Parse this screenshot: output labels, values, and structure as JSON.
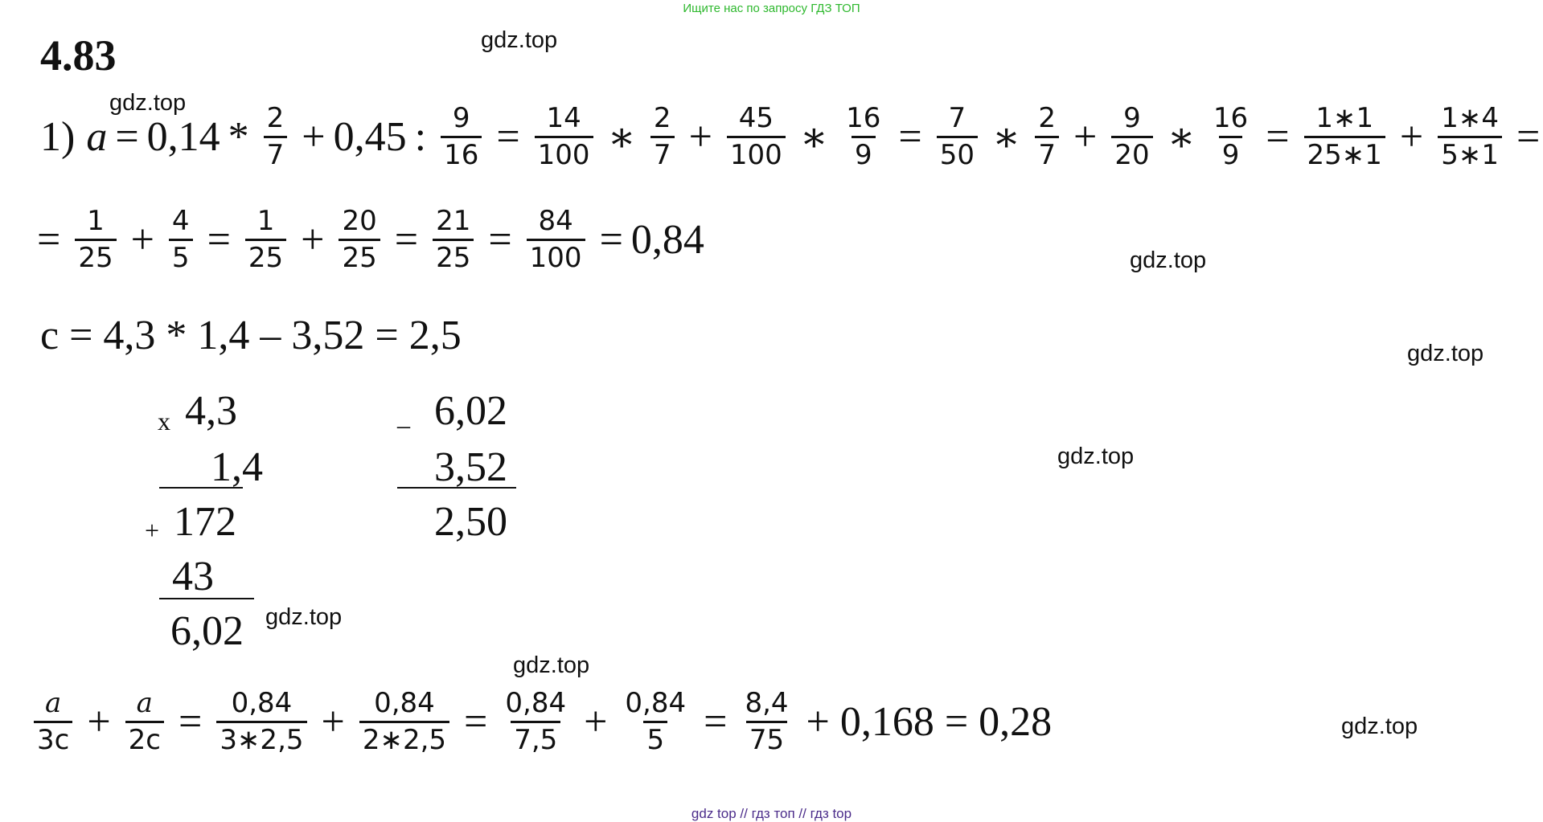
{
  "banner": "Ищите нас по запросу ГДЗ ТОП",
  "watermark": "gdz.top",
  "problem_number": "4.83",
  "line1": {
    "prefix": "1)",
    "var_a": "a",
    "eq": "=",
    "v1": "0,14",
    "mul": "*",
    "f1": {
      "n": "2",
      "d": "7"
    },
    "plus": "+",
    "v2": "0,45",
    "div": ":",
    "f2": {
      "n": "9",
      "d": "16"
    },
    "f3": {
      "n": "14",
      "d": "100"
    },
    "f4": {
      "n": "2",
      "d": "7"
    },
    "f5": {
      "n": "45",
      "d": "100"
    },
    "f6": {
      "n": "16",
      "d": "9"
    },
    "f7": {
      "n": "7",
      "d": "50"
    },
    "f8": {
      "n": "2",
      "d": "7"
    },
    "f9": {
      "n": "9",
      "d": "20"
    },
    "f10": {
      "n": "16",
      "d": "9"
    },
    "f11": {
      "n": "1∗1",
      "d": "25∗1"
    },
    "f12": {
      "n": "1∗4",
      "d": "5∗1"
    },
    "star": "∗"
  },
  "line2": {
    "f1": {
      "n": "1",
      "d": "25"
    },
    "f2": {
      "n": "4",
      "d": "5"
    },
    "f3": {
      "n": "1",
      "d": "25"
    },
    "f4": {
      "n": "20",
      "d": "25"
    },
    "f5": {
      "n": "21",
      "d": "25"
    },
    "f6": {
      "n": "84",
      "d": "100"
    },
    "result": "0,84"
  },
  "line3": "c = 4,3 * 1,4 – 3,52 = 2,5",
  "mult": {
    "sign": "x",
    "a": "4,3",
    "b": "1,4",
    "plus": "+",
    "p1": "172",
    "p2": "43",
    "result": "6,02"
  },
  "sub": {
    "sign": "_",
    "a": "6,02",
    "b": "3,52",
    "result": "2,50"
  },
  "line4": {
    "f1": {
      "n": "a",
      "d": "3c"
    },
    "f2": {
      "n": "a",
      "d": "2c"
    },
    "f3": {
      "n": "0,84",
      "d": "3∗2,5"
    },
    "f4": {
      "n": "0,84",
      "d": "2∗2,5"
    },
    "f5": {
      "n": "0,84",
      "d": "7,5"
    },
    "f6": {
      "n": "0,84",
      "d": "5"
    },
    "f7": {
      "n": "8,4",
      "d": "75"
    },
    "tail": "+ 0,168 = 0,28"
  },
  "footer": "gdz top  //  гдз топ  //  гдз top"
}
